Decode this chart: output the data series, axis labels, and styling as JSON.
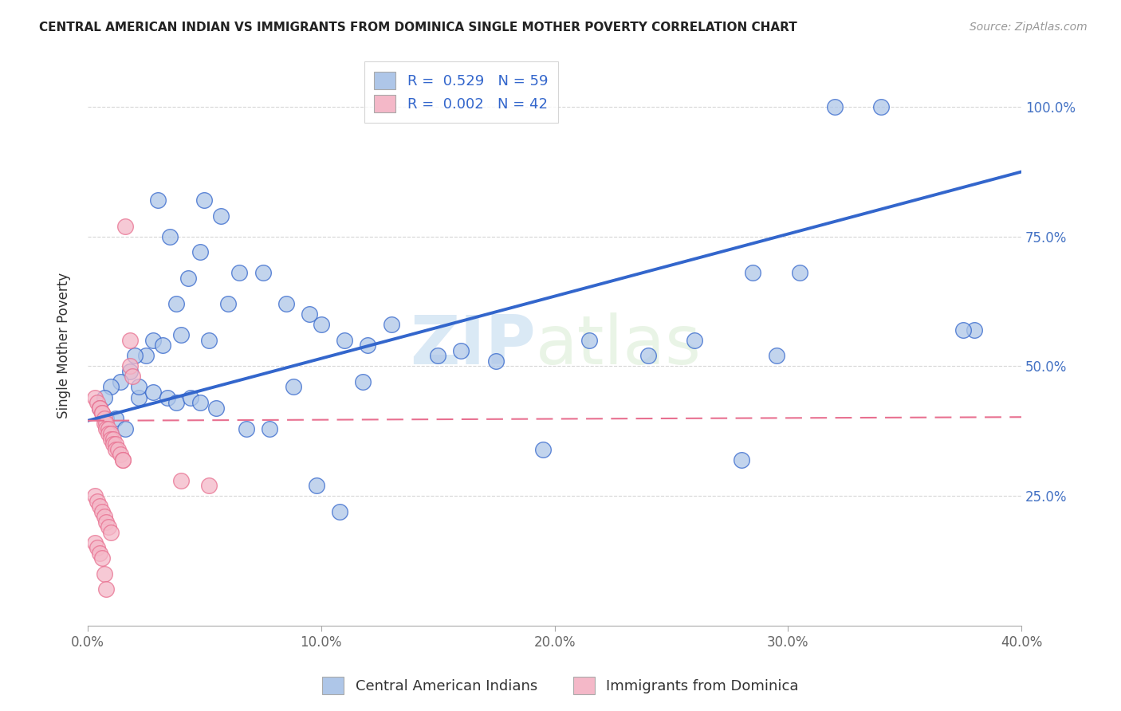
{
  "title": "CENTRAL AMERICAN INDIAN VS IMMIGRANTS FROM DOMINICA SINGLE MOTHER POVERTY CORRELATION CHART",
  "source": "Source: ZipAtlas.com",
  "ylabel": "Single Mother Poverty",
  "xlim": [
    0.0,
    0.4
  ],
  "ylim": [
    0.0,
    1.08
  ],
  "xtick_labels": [
    "0.0%",
    "10.0%",
    "20.0%",
    "30.0%",
    "40.0%"
  ],
  "xtick_vals": [
    0.0,
    0.1,
    0.2,
    0.3,
    0.4
  ],
  "ytick_labels": [
    "25.0%",
    "50.0%",
    "75.0%",
    "100.0%"
  ],
  "ytick_vals": [
    0.25,
    0.5,
    0.75,
    1.0
  ],
  "blue_R": 0.529,
  "blue_N": 59,
  "pink_R": 0.002,
  "pink_N": 42,
  "blue_color": "#aec6e8",
  "pink_color": "#f4b8c8",
  "blue_line_color": "#3366cc",
  "pink_line_color": "#e87090",
  "watermark_zip": "ZIP",
  "watermark_atlas": "atlas",
  "legend_label_blue": "Central American Indians",
  "legend_label_pink": "Immigrants from Dominica",
  "blue_scatter_x": [
    0.022,
    0.03,
    0.05,
    0.057,
    0.035,
    0.048,
    0.043,
    0.038,
    0.028,
    0.025,
    0.018,
    0.014,
    0.01,
    0.007,
    0.005,
    0.02,
    0.032,
    0.04,
    0.052,
    0.06,
    0.065,
    0.075,
    0.085,
    0.095,
    0.1,
    0.11,
    0.12,
    0.13,
    0.15,
    0.16,
    0.175,
    0.195,
    0.215,
    0.24,
    0.26,
    0.28,
    0.295,
    0.32,
    0.34,
    0.38,
    0.008,
    0.012,
    0.016,
    0.022,
    0.028,
    0.034,
    0.038,
    0.044,
    0.048,
    0.055,
    0.068,
    0.078,
    0.088,
    0.098,
    0.108,
    0.118,
    0.285,
    0.305,
    0.375
  ],
  "blue_scatter_y": [
    0.44,
    0.82,
    0.82,
    0.79,
    0.75,
    0.72,
    0.67,
    0.62,
    0.55,
    0.52,
    0.49,
    0.47,
    0.46,
    0.44,
    0.42,
    0.52,
    0.54,
    0.56,
    0.55,
    0.62,
    0.68,
    0.68,
    0.62,
    0.6,
    0.58,
    0.55,
    0.54,
    0.58,
    0.52,
    0.53,
    0.51,
    0.34,
    0.55,
    0.52,
    0.55,
    0.32,
    0.52,
    1.0,
    1.0,
    0.57,
    0.4,
    0.4,
    0.38,
    0.46,
    0.45,
    0.44,
    0.43,
    0.44,
    0.43,
    0.42,
    0.38,
    0.38,
    0.46,
    0.27,
    0.22,
    0.47,
    0.68,
    0.68,
    0.57
  ],
  "pink_scatter_x": [
    0.003,
    0.004,
    0.005,
    0.005,
    0.006,
    0.006,
    0.007,
    0.007,
    0.008,
    0.008,
    0.009,
    0.009,
    0.01,
    0.01,
    0.011,
    0.011,
    0.012,
    0.012,
    0.013,
    0.014,
    0.015,
    0.015,
    0.016,
    0.018,
    0.018,
    0.019,
    0.003,
    0.004,
    0.005,
    0.006,
    0.007,
    0.008,
    0.009,
    0.01,
    0.04,
    0.052,
    0.003,
    0.004,
    0.005,
    0.006,
    0.007,
    0.008
  ],
  "pink_scatter_y": [
    0.44,
    0.43,
    0.42,
    0.42,
    0.41,
    0.41,
    0.4,
    0.39,
    0.39,
    0.38,
    0.38,
    0.37,
    0.37,
    0.36,
    0.36,
    0.35,
    0.35,
    0.34,
    0.34,
    0.33,
    0.32,
    0.32,
    0.77,
    0.55,
    0.5,
    0.48,
    0.25,
    0.24,
    0.23,
    0.22,
    0.21,
    0.2,
    0.19,
    0.18,
    0.28,
    0.27,
    0.16,
    0.15,
    0.14,
    0.13,
    0.1,
    0.07
  ],
  "blue_trendline": [
    [
      0.0,
      0.395
    ],
    [
      0.4,
      0.875
    ]
  ],
  "pink_trendline": [
    [
      0.0,
      0.395
    ],
    [
      0.4,
      0.402
    ]
  ]
}
